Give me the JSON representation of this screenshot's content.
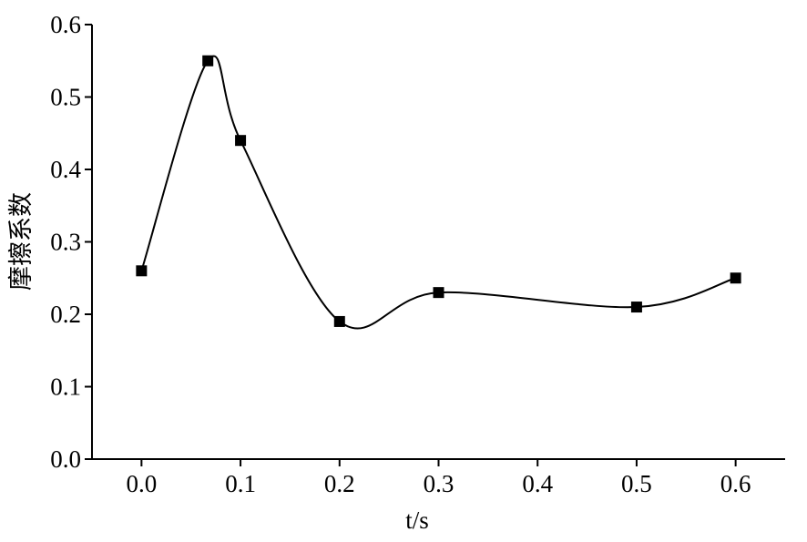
{
  "chart_data": {
    "type": "line",
    "x_label": "t/s",
    "y_label": "摩擦系数",
    "x": [
      0,
      0.067,
      0.1,
      0.2,
      0.3,
      0.5,
      0.6
    ],
    "series": [
      {
        "color": "#000000",
        "values": [
          0.26,
          0.55,
          0.44,
          0.19,
          0.23,
          0.21,
          0.25
        ]
      }
    ],
    "xlim": [
      -0.05,
      0.65
    ],
    "ylim": [
      0,
      0.6
    ],
    "xticks": [
      {
        "value": 0,
        "label": "0.0"
      },
      0.1,
      0.2,
      0.3,
      0.4,
      0.5,
      0.6
    ],
    "yticks": [
      {
        "value": 0,
        "label": "0.0"
      },
      0.1,
      0.2,
      0.3,
      0.4,
      0.5,
      0.6
    ],
    "smooth": true,
    "marker": "square"
  }
}
